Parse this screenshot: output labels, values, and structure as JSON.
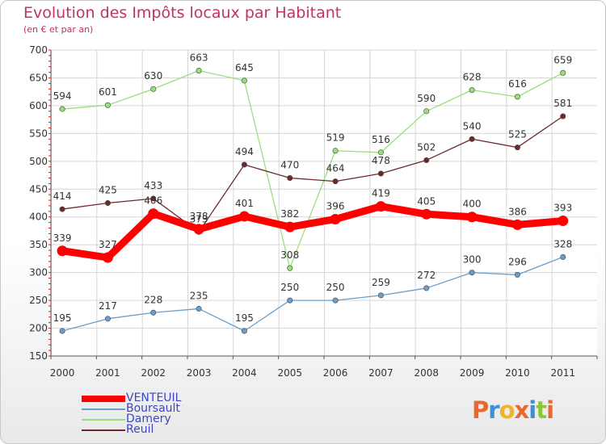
{
  "header": {
    "title": "Evolution des Impôts locaux par Habitant",
    "subtitle": "(en € et par an)"
  },
  "logo": {
    "text": "Proxiti",
    "colors": [
      "#e8682f",
      "#3a8fd6",
      "#f0b428",
      "#e8682f",
      "#3a8fd6",
      "#8cc63f",
      "#e8682f"
    ]
  },
  "chart_data": {
    "type": "line",
    "x": [
      "2000",
      "2001",
      "2002",
      "2003",
      "2004",
      "2005",
      "2006",
      "2007",
      "2008",
      "2009",
      "2010",
      "2011"
    ],
    "ylim": [
      150,
      700
    ],
    "yticks": [
      150,
      200,
      250,
      300,
      350,
      400,
      450,
      500,
      550,
      600,
      650,
      700
    ],
    "grid": true,
    "legend_position": "bottom-left",
    "series": [
      {
        "name": "VENTEUIL",
        "color": "#ff0000",
        "emphasis": true,
        "values": [
          339,
          327,
          406,
          378,
          401,
          382,
          396,
          419,
          405,
          400,
          386,
          393
        ]
      },
      {
        "name": "Boursault",
        "color": "#6a9ecb",
        "emphasis": false,
        "values": [
          195,
          217,
          228,
          235,
          195,
          250,
          250,
          259,
          272,
          300,
          296,
          328
        ]
      },
      {
        "name": "Damery",
        "color": "#99e07a",
        "emphasis": false,
        "values": [
          594,
          601,
          630,
          663,
          645,
          308,
          519,
          516,
          590,
          628,
          616,
          659
        ]
      },
      {
        "name": "Reuil",
        "color": "#6e2a2a",
        "emphasis": false,
        "values": [
          414,
          425,
          433,
          373,
          494,
          470,
          464,
          478,
          502,
          540,
          525,
          581
        ]
      }
    ]
  }
}
